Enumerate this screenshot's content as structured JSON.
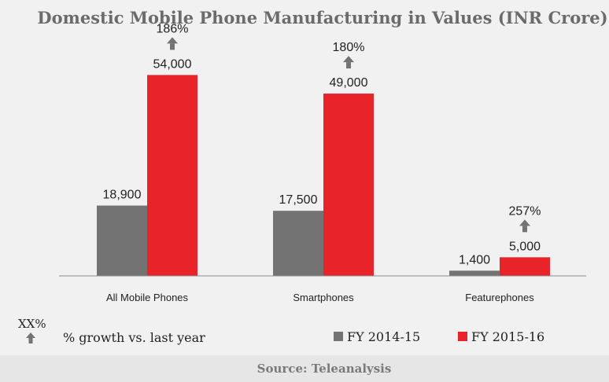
{
  "chart_data": {
    "type": "bar",
    "title": "Domestic Mobile Phone Manufacturing in Values (INR Crore)",
    "categories": [
      "All Mobile Phones",
      "Smartphones",
      "Featurephones"
    ],
    "series": [
      {
        "name": "FY 2014-15",
        "values": [
          18900,
          17500,
          1400
        ],
        "labels": [
          "18,900",
          "17,500",
          "1,400"
        ],
        "color": "#737373"
      },
      {
        "name": "FY 2015-16",
        "values": [
          54000,
          49000,
          5000
        ],
        "labels": [
          "54,000",
          "49,000",
          "5,000"
        ],
        "color": "#e8232a"
      }
    ],
    "growth": [
      "186%",
      "180%",
      "257%"
    ],
    "ylim": [
      0,
      60000
    ],
    "grid": false,
    "legend_position": "bottom-right"
  },
  "legend": {
    "growth_marker": "XX%",
    "growth_text": "% growth vs. last year",
    "arrow_icon": "up-arrow-icon"
  },
  "source": "Source: Teleanalysis",
  "colors": {
    "arrow": "#737373",
    "axis": "#8c8c8c",
    "background": "#f1f1f1",
    "footer": "#e6e6e6"
  }
}
